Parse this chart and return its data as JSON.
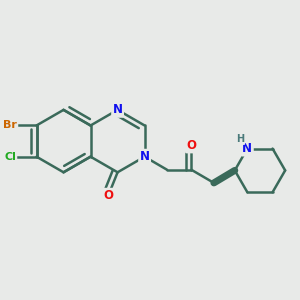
{
  "bg_color": "#e8eae8",
  "bond_color": "#3a6a5a",
  "bond_width": 1.8,
  "dbo": 0.08,
  "atom_colors": {
    "N": "#1010ee",
    "O": "#ee1010",
    "Br": "#cc6600",
    "Cl": "#22aa22",
    "H": "#4a7a7a",
    "C": "#3a6a5a"
  },
  "font_size": 8.5,
  "fig_size": [
    3.0,
    3.0
  ],
  "dpi": 100
}
